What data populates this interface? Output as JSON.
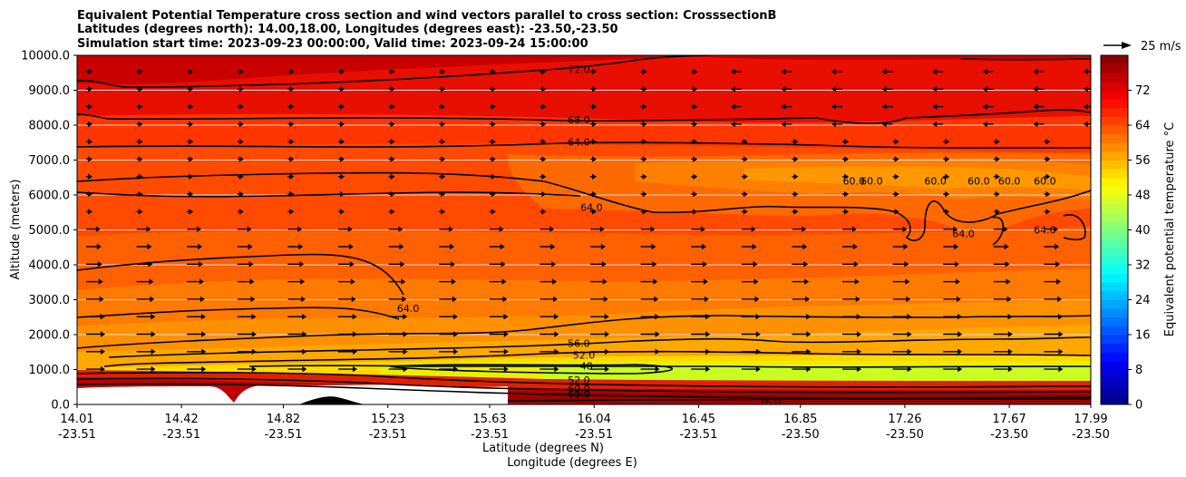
{
  "chart_data": {
    "type": "heatmap",
    "title_lines": [
      "Equivalent Potential Temperature cross section and wind vectors parallel to cross section: CrosssectionB",
      "Latitudes (degrees north): 14.00,18.00, Longitudes (degrees east): -23.50,-23.50",
      "Simulation start time: 2023-09-23 00:00:00, Valid time: 2023-09-24 15:00:00"
    ],
    "ylabel": "Altitude (meters)",
    "xlabel_lines": [
      "Latitude (degrees N)",
      "Longitude (degrees E)"
    ],
    "ylim": [
      0,
      10000
    ],
    "yticks": [
      "0.0",
      "1000.0",
      "2000.0",
      "3000.0",
      "4000.0",
      "5000.0",
      "6000.0",
      "7000.0",
      "8000.0",
      "9000.0",
      "10000.0"
    ],
    "ytick_values": [
      0,
      1000,
      2000,
      3000,
      4000,
      5000,
      6000,
      7000,
      8000,
      9000,
      10000
    ],
    "xlim": [
      14.01,
      17.99
    ],
    "xticks": [
      {
        "lat": "14.01",
        "lon": "-23.51",
        "value": 14.01
      },
      {
        "lat": "14.42",
        "lon": "-23.51",
        "value": 14.42
      },
      {
        "lat": "14.82",
        "lon": "-23.51",
        "value": 14.82
      },
      {
        "lat": "15.23",
        "lon": "-23.51",
        "value": 15.23
      },
      {
        "lat": "15.63",
        "lon": "-23.51",
        "value": 15.63
      },
      {
        "lat": "16.04",
        "lon": "-23.51",
        "value": 16.04
      },
      {
        "lat": "16.45",
        "lon": "-23.51",
        "value": 16.45
      },
      {
        "lat": "16.85",
        "lon": "-23.50",
        "value": 16.85
      },
      {
        "lat": "17.26",
        "lon": "-23.50",
        "value": 17.26
      },
      {
        "lat": "17.67",
        "lon": "-23.50",
        "value": 17.67
      },
      {
        "lat": "17.99",
        "lon": "-23.50",
        "value": 17.99
      }
    ],
    "grid": "horizontal",
    "colorbar": {
      "label": "Equivalent potential temperature °C",
      "ticks": [
        "0",
        "8",
        "16",
        "24",
        "32",
        "40",
        "48",
        "56",
        "64",
        "72"
      ],
      "tick_values": [
        0,
        8,
        16,
        24,
        32,
        40,
        48,
        56,
        64,
        72
      ],
      "range": [
        0,
        80
      ],
      "colormap": "jet"
    },
    "quiver_key": {
      "label": "25 m/s",
      "speed": 25
    },
    "contour_labels": [
      {
        "text": "72.0",
        "x": 15.98,
        "y": 9600
      },
      {
        "text": "68.0",
        "x": 15.98,
        "y": 8150
      },
      {
        "text": "64.0",
        "x": 15.98,
        "y": 7520
      },
      {
        "text": "64.0",
        "x": 16.03,
        "y": 5650
      },
      {
        "text": "64.0",
        "x": 15.31,
        "y": 2750
      },
      {
        "text": "56.0",
        "x": 15.98,
        "y": 1750
      },
      {
        "text": "52.0",
        "x": 16.0,
        "y": 1420
      },
      {
        "text": "48",
        "x": 16.01,
        "y": 1100
      },
      {
        "text": "52.0",
        "x": 15.98,
        "y": 700
      },
      {
        "text": "60.0",
        "x": 15.98,
        "y": 450
      },
      {
        "text": "68.0",
        "x": 15.98,
        "y": 300
      },
      {
        "text": "76.0",
        "x": 16.73,
        "y": 60
      },
      {
        "text": "60.0",
        "x": 17.06,
        "y": 6400
      },
      {
        "text": "60.0",
        "x": 17.13,
        "y": 6400
      },
      {
        "text": "60.0",
        "x": 17.38,
        "y": 6400
      },
      {
        "text": "60.0",
        "x": 17.55,
        "y": 6400
      },
      {
        "text": "60.0",
        "x": 17.67,
        "y": 6400
      },
      {
        "text": "60.0",
        "x": 17.81,
        "y": 6400
      },
      {
        "text": "64.0",
        "x": 17.49,
        "y": 4900
      },
      {
        "text": "64.0",
        "x": 17.81,
        "y": 5000
      }
    ]
  }
}
